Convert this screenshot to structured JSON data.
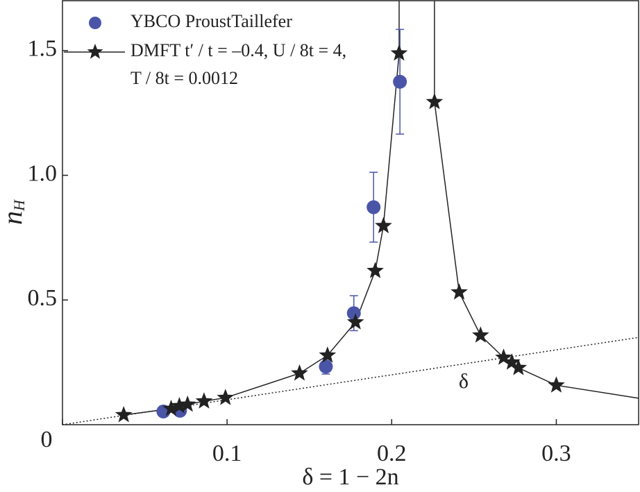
{
  "chart_data": {
    "type": "scatter",
    "x_label": "δ = 1 − 2n",
    "y_label": {
      "base": "n",
      "sub": "H"
    },
    "xlim": [
      0,
      0.35
    ],
    "ylim": [
      0,
      1.7
    ],
    "xticks": [
      0,
      0.1,
      0.2,
      0.3
    ],
    "yticks": [
      0.5,
      {
        "value": 1,
        "label": "1.0"
      },
      1.5
    ],
    "series": [
      {
        "name": [
          "YBCO ProustTaillefer"
        ],
        "color": "#4a55a8",
        "marker": "circle",
        "x": [
          0.0613,
          0.0714,
          0.16,
          0.177,
          0.189,
          0.205
        ],
        "values": [
          0.053,
          0.056,
          0.233,
          0.447,
          0.872,
          1.375
        ],
        "errors": [
          0,
          0,
          0.03,
          0.07,
          0.14,
          0.21
        ]
      },
      {
        "name": [
          "DMFT t′ / t = –0.4, U / 8t = 4,",
          "T / 8t = 0.0012"
        ],
        "color": "#222222",
        "marker": "star",
        "x": [
          0.0372,
          0.066,
          0.071,
          0.076,
          0.086,
          0.099,
          0.144,
          0.161,
          0.178,
          0.19,
          0.195,
          0.2045,
          0.226,
          0.241,
          0.254,
          0.268,
          0.273,
          0.277,
          0.3
        ],
        "values": [
          0.039,
          0.064,
          0.075,
          0.081,
          0.094,
          0.108,
          0.206,
          0.278,
          0.411,
          0.617,
          0.797,
          1.489,
          1.294,
          0.531,
          0.358,
          0.269,
          0.25,
          0.228,
          0.158
        ]
      }
    ],
    "curve": {
      "color": "#222222",
      "x": [
        0.0372,
        0.066,
        0.071,
        0.076,
        0.086,
        0.099,
        0.144,
        0.161,
        0.178,
        0.19,
        0.195,
        0.2045,
        0.2045,
        null,
        0.226,
        0.226,
        0.241,
        0.254,
        0.268,
        0.273,
        0.277,
        0.3,
        0.35
      ],
      "values": [
        0.039,
        0.064,
        0.075,
        0.081,
        0.094,
        0.108,
        0.206,
        0.278,
        0.411,
        0.617,
        0.797,
        1.489,
        1.7,
        null,
        1.7,
        1.294,
        0.531,
        0.358,
        0.269,
        0.25,
        0.228,
        0.158,
        0.106
      ]
    },
    "reference_line": {
      "label": "δ",
      "x": [
        0,
        0.35
      ],
      "values": [
        0,
        0.35
      ]
    }
  }
}
